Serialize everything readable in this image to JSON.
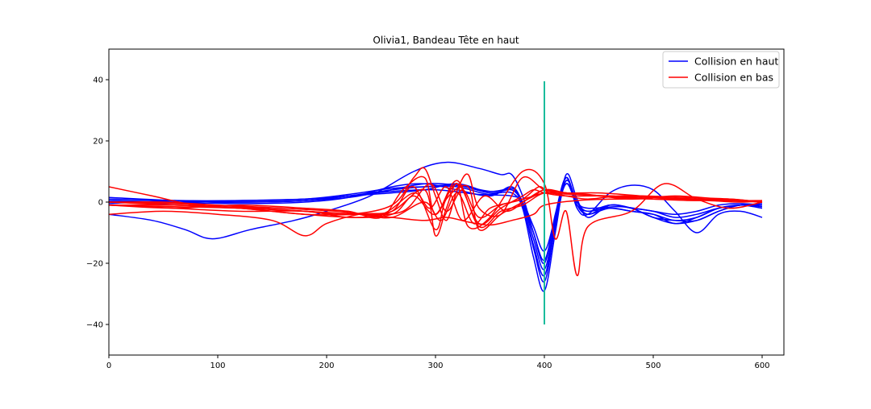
{
  "chart_data": {
    "type": "line",
    "title": "Olivia1, Bandeau Tête en haut",
    "xlabel": "",
    "ylabel": "",
    "xlim": [
      0,
      620
    ],
    "ylim": [
      -50,
      50
    ],
    "xticks": [
      0,
      100,
      200,
      300,
      400,
      500,
      600
    ],
    "yticks": [
      -40,
      -20,
      0,
      20,
      40
    ],
    "grid": false,
    "legend": {
      "placement": "top-right"
    },
    "colors": {
      "haut": "#0000ff",
      "bas": "#ff0000",
      "marker": "#1abc9c"
    },
    "series": [
      {
        "name": "Collision en haut",
        "color": "#0000ff",
        "x": [
          0,
          60,
          120,
          180,
          220,
          260,
          290,
          320,
          350,
          370,
          380,
          390,
          400,
          410,
          420,
          430,
          440,
          460,
          480,
          500,
          520,
          540,
          560,
          580,
          600
        ],
        "y": [
          1.5,
          0.5,
          0,
          0.5,
          2,
          4,
          5,
          5.5,
          3,
          4,
          0,
          -12,
          -22,
          -6,
          8,
          -1,
          -4,
          -2,
          -3,
          -4,
          -6,
          -5,
          -2,
          -1,
          -2
        ]
      },
      {
        "x": [
          0,
          60,
          120,
          180,
          220,
          260,
          290,
          320,
          350,
          370,
          380,
          390,
          400,
          410,
          420,
          430,
          440,
          460,
          480,
          500,
          520,
          540,
          560,
          580,
          600
        ],
        "y": [
          0.5,
          0,
          -0.5,
          0,
          1.5,
          5,
          6,
          4,
          2,
          5,
          -1,
          -15,
          -26,
          -8,
          7,
          0,
          -3,
          -1,
          -2,
          -5,
          -7,
          -6,
          -3,
          -1,
          -1.5
        ]
      },
      {
        "x": [
          0,
          60,
          120,
          180,
          220,
          260,
          290,
          320,
          350,
          370,
          380,
          390,
          400,
          410,
          420,
          430,
          440,
          460,
          480,
          500,
          520,
          540,
          560,
          580,
          600
        ],
        "y": [
          -0.5,
          0.5,
          0,
          0.5,
          2,
          3,
          4,
          6,
          3,
          3,
          -2,
          -18,
          -29,
          -10,
          9,
          1,
          -5,
          -1,
          -2,
          -3,
          -5,
          -4,
          -2,
          -1,
          -1
        ]
      },
      {
        "x": [
          0,
          60,
          120,
          180,
          220,
          260,
          290,
          320,
          350,
          370,
          380,
          390,
          400,
          410,
          420,
          430,
          440,
          460,
          480,
          500,
          520,
          540,
          560,
          580,
          600
        ],
        "y": [
          1,
          0.5,
          0.5,
          1,
          2.5,
          4.5,
          5,
          5,
          2.5,
          4.5,
          0,
          -10,
          -19,
          -5,
          6,
          -1,
          -3,
          -2,
          -3,
          -4,
          -7,
          -5,
          -2,
          -1,
          -0.5
        ]
      },
      {
        "x": [
          0,
          60,
          120,
          180,
          220,
          260,
          290,
          320,
          350,
          370,
          380,
          390,
          400,
          410,
          420,
          430,
          440,
          460,
          480,
          500,
          520,
          540,
          560,
          580,
          600
        ],
        "y": [
          0,
          -0.5,
          0,
          0.5,
          1.5,
          4,
          6,
          5.5,
          3.5,
          4,
          -1,
          -14,
          -24,
          -7,
          7,
          0,
          -4,
          -1,
          -2,
          -5,
          -6,
          -6,
          -3,
          -1,
          -1
        ]
      },
      {
        "x": [
          0,
          40,
          70,
          95,
          130,
          170,
          200,
          240,
          280,
          310,
          340,
          360,
          370,
          380,
          390,
          400,
          410,
          420,
          430,
          440,
          460,
          480,
          500,
          520,
          540,
          560,
          580,
          600
        ],
        "y": [
          -4,
          -6,
          -9,
          -12,
          -9,
          -6,
          -3,
          2,
          10,
          13,
          11,
          9,
          9,
          2,
          -10,
          -20,
          -4,
          8,
          -2,
          -4,
          3,
          5.5,
          4,
          -3,
          -10,
          -4,
          -3,
          -5
        ]
      },
      {
        "x": [
          0,
          60,
          120,
          180,
          220,
          260,
          300,
          340,
          370,
          380,
          390,
          400,
          410,
          420,
          430,
          440,
          470,
          500,
          520,
          540,
          560,
          580,
          600
        ],
        "y": [
          0,
          0,
          0.5,
          1,
          2,
          3.5,
          4,
          2.5,
          2,
          0,
          -8,
          -16,
          -5,
          6,
          0,
          -2,
          -1.5,
          -3,
          -4,
          -3,
          -1,
          -0.5,
          -1
        ]
      },
      {
        "name": "Collision en bas",
        "color": "#ff0000",
        "x": [
          0,
          40,
          80,
          130,
          180,
          220,
          260,
          280,
          290,
          300,
          310,
          320,
          330,
          340,
          360,
          380,
          400,
          420,
          440,
          480,
          520,
          560,
          600
        ],
        "y": [
          5,
          2,
          -1,
          -2,
          -3,
          -4,
          -1,
          8,
          11,
          2,
          -6,
          4,
          9,
          -2,
          -4,
          8,
          4,
          3,
          2.5,
          1,
          2,
          1,
          0
        ]
      },
      {
        "x": [
          0,
          50,
          100,
          150,
          180,
          200,
          230,
          260,
          290,
          300,
          310,
          320,
          330,
          350,
          380,
          400,
          410,
          420,
          430,
          440,
          480,
          510,
          540,
          570,
          600
        ],
        "y": [
          -4,
          -3,
          -4,
          -6,
          -11,
          -7,
          -4,
          -3,
          4,
          -11,
          -2,
          6,
          -8,
          -5,
          10,
          6,
          -12,
          -3,
          -24,
          -8,
          -3,
          6,
          1,
          -2,
          0
        ]
      },
      {
        "x": [
          0,
          60,
          120,
          180,
          220,
          260,
          280,
          300,
          320,
          340,
          360,
          380,
          400,
          420,
          440,
          470,
          500,
          540,
          570,
          600
        ],
        "y": [
          -1,
          -2,
          -3,
          -3,
          -5,
          -4,
          2,
          -4,
          7,
          -8,
          -3,
          -1,
          3,
          2,
          1,
          2,
          1.5,
          1,
          0.5,
          0
        ]
      },
      {
        "x": [
          0,
          60,
          120,
          180,
          230,
          260,
          280,
          300,
          310,
          330,
          340,
          360,
          380,
          400,
          420,
          450,
          500,
          540,
          570,
          600
        ],
        "y": [
          0,
          -1,
          -2,
          -4,
          -5,
          -3,
          5,
          -9,
          1,
          5,
          -9,
          -4,
          0,
          4,
          3,
          2,
          1,
          0.5,
          1,
          0
        ]
      },
      {
        "x": [
          0,
          60,
          120,
          180,
          220,
          250,
          270,
          290,
          300,
          320,
          340,
          360,
          380,
          390,
          400,
          420,
          460,
          500,
          540,
          580,
          600
        ],
        "y": [
          -1,
          -2,
          -1,
          -2,
          -3,
          -5,
          4,
          8,
          -4,
          6,
          -7,
          -2,
          2,
          4,
          3,
          2,
          2,
          1,
          1,
          0.5,
          0
        ]
      },
      {
        "x": [
          0,
          60,
          120,
          180,
          230,
          260,
          290,
          310,
          330,
          350,
          370,
          390,
          400,
          430,
          470,
          510,
          550,
          580,
          600
        ],
        "y": [
          -1,
          -1.5,
          -2,
          -3,
          -4,
          -5,
          -6,
          -5,
          -6.5,
          -7.5,
          -6,
          -4,
          -1,
          0.5,
          1,
          1,
          0.5,
          0,
          0.5
        ]
      },
      {
        "x": [
          0,
          50,
          100,
          160,
          210,
          250,
          280,
          295,
          310,
          325,
          345,
          365,
          385,
          400,
          420,
          450,
          490,
          530,
          570,
          600
        ],
        "y": [
          0,
          0,
          -1,
          -2,
          -3,
          -4,
          3,
          -2,
          5,
          -6,
          2,
          -3,
          1,
          3,
          3,
          2,
          2,
          1.5,
          1,
          0
        ]
      },
      {
        "x": [
          0,
          60,
          120,
          180,
          230,
          270,
          295,
          310,
          325,
          340,
          360,
          380,
          395,
          405,
          430,
          460,
          500,
          540,
          570,
          600
        ],
        "y": [
          -1,
          -1,
          -2,
          -4,
          -4,
          -3,
          6,
          -3,
          4,
          -5,
          -1,
          1,
          5,
          3,
          2.5,
          2,
          1.5,
          1,
          0.5,
          0.5
        ]
      },
      {
        "x": [
          0,
          60,
          120,
          180,
          230,
          260,
          290,
          305,
          320,
          335,
          350,
          370,
          390,
          400,
          420,
          450,
          490,
          530,
          570,
          600
        ],
        "y": [
          0,
          -0.5,
          -1.5,
          -3,
          -4,
          -5,
          0,
          -6,
          3,
          -7,
          -2,
          0,
          2,
          4,
          3,
          3,
          2,
          1,
          0.5,
          0
        ]
      }
    ],
    "marker_line": {
      "x": 400,
      "y_from": -40,
      "y_to": 39.5
    },
    "legend_entries": [
      {
        "label": "Collision en haut",
        "color": "#0000ff"
      },
      {
        "label": "Collision en bas",
        "color": "#ff0000"
      }
    ]
  }
}
